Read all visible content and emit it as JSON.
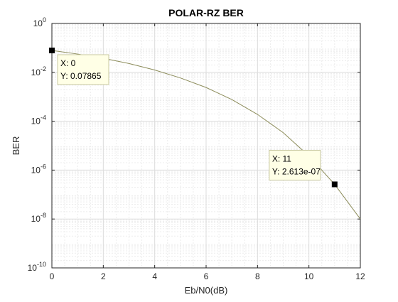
{
  "window": {
    "background_color": "#ffffff"
  },
  "chart_data": {
    "type": "line",
    "title": "POLAR-RZ BER",
    "xlabel": "Eb/N0(dB)",
    "ylabel": "BER",
    "xlim": [
      0,
      12
    ],
    "ylim": [
      1e-10,
      1
    ],
    "yscale": "log",
    "grid": true,
    "minor_grid": true,
    "x_ticks": [
      0,
      2,
      4,
      6,
      8,
      10,
      12
    ],
    "y_tick_exponents": [
      0,
      -2,
      -4,
      -6,
      -8,
      -10
    ],
    "y_tick_base": "10",
    "series": [
      {
        "color": "#8c8c5a",
        "x": [
          0,
          1,
          2,
          3,
          4,
          5,
          6,
          7,
          8,
          9,
          10,
          11,
          12
        ],
        "y": [
          0.07865,
          0.056,
          0.0375,
          0.023,
          0.0125,
          0.0059,
          0.0024,
          0.00077,
          0.00019,
          3.4e-05,
          3.8e-06,
          2.613e-07,
          1e-08
        ]
      }
    ],
    "datatips": [
      {
        "x_label": "X: 0",
        "y_label": "Y: 0.07865",
        "x": 0,
        "y": 0.07865
      },
      {
        "x_label": "X: 11",
        "y_label": "Y: 2.613e-07",
        "x": 11,
        "y": 2.613e-07
      }
    ],
    "colors": {
      "axis": "#262626",
      "grid": "#dcdcdc",
      "minor_grid": "#ececec",
      "datatip_bg": "#ffffe6",
      "datatip_border": "#c8c8a0",
      "marker": "#000000"
    }
  }
}
